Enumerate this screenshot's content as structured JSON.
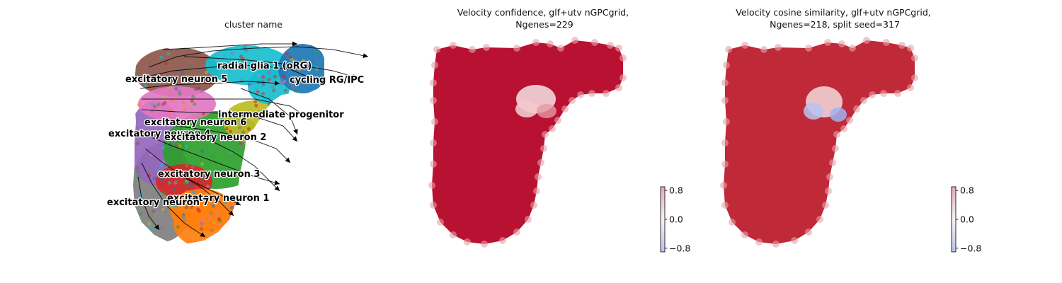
{
  "chart_data": [
    {
      "type": "scatter",
      "title": "cluster name",
      "legend": "on data",
      "overlay": "velocity streamlines",
      "clusters": [
        {
          "label": "radial glia 1 (oRG)",
          "color": "#17becf"
        },
        {
          "label": "cycling RG/IPC",
          "color": "#1f77b4"
        },
        {
          "label": "excitatory neuron 5",
          "color": "#8c564b"
        },
        {
          "label": "intermediate progenitor",
          "color": "#bcbd22"
        },
        {
          "label": "excitatory neuron 6",
          "color": "#e377c2"
        },
        {
          "label": "excitatory neuron 4",
          "color": "#9467bd"
        },
        {
          "label": "excitatory neuron 2",
          "color": "#2ca02c"
        },
        {
          "label": "excitatory neuron 3",
          "color": "#d62728"
        },
        {
          "label": "excitatory neuron 1",
          "color": "#ff7f0e"
        },
        {
          "label": "excitatory neuron 7",
          "color": "#7f7f7f"
        }
      ]
    },
    {
      "type": "scatter",
      "title": "Velocity confidence, glf+utv nGPCgrid,\nNgenes=229",
      "colormap": "coolwarm",
      "colorbar": {
        "ticks": [
          "0.8",
          "0.0",
          "−0.8"
        ],
        "range": [
          -0.8,
          0.8
        ]
      },
      "dominant_value": "high (~1.0)"
    },
    {
      "type": "scatter",
      "title": "Velocity cosine similarity, glf+utv nGPCgrid,\nNgenes=218, split seed=317",
      "colormap": "coolwarm",
      "colorbar": {
        "ticks": [
          "0.8",
          "0.0",
          "−0.8"
        ],
        "range": [
          -0.8,
          0.8
        ]
      },
      "dominant_value": "high (~1.0)"
    }
  ]
}
